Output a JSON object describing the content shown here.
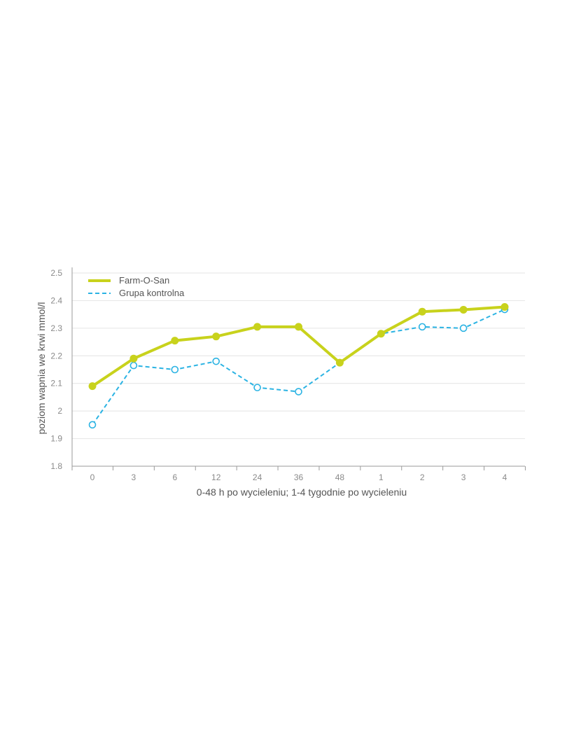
{
  "chart_data": {
    "type": "line",
    "categories": [
      "0",
      "3",
      "6",
      "12",
      "24",
      "36",
      "48",
      "1",
      "2",
      "3",
      "4"
    ],
    "series": [
      {
        "name": "Farm-O-San",
        "values": [
          2.09,
          2.19,
          2.255,
          2.27,
          2.305,
          2.305,
          2.175,
          2.28,
          2.36,
          2.367,
          2.377
        ],
        "color": "#c8d21c",
        "style": "solid",
        "marker": "filled-circle"
      },
      {
        "name": "Grupa kontrolna",
        "values": [
          1.95,
          2.165,
          2.15,
          2.18,
          2.085,
          2.07,
          2.175,
          2.28,
          2.305,
          2.3,
          2.368
        ],
        "color": "#2bb3e3",
        "style": "dashed",
        "marker": "open-circle"
      }
    ],
    "title": "",
    "xlabel": "0-48 h po wycieleniu; 1-4 tygodnie po wycieleniu",
    "ylabel": "poziom wapnia we krwi mmol/l",
    "ylim": [
      1.8,
      2.5
    ],
    "yticks": [
      "1.8",
      "1.9",
      "2",
      "2.1",
      "2.2",
      "2.3",
      "2.4",
      "2.5"
    ],
    "grid": true,
    "legend_position": "top-left"
  }
}
